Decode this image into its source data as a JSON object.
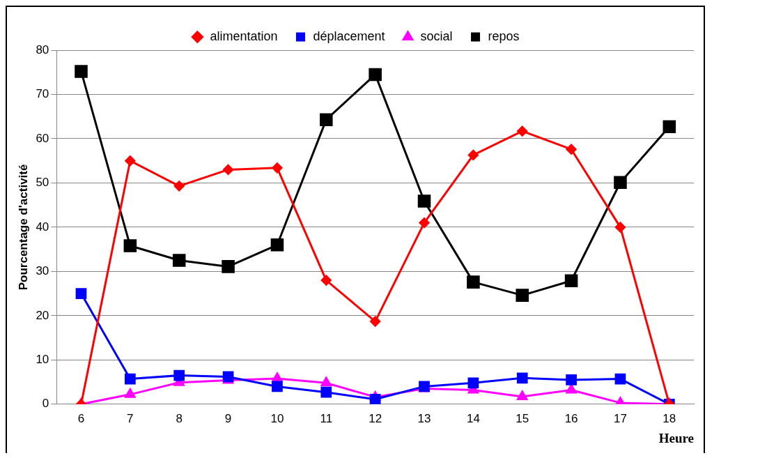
{
  "chart_data": {
    "type": "line",
    "xlabel": "Heure",
    "ylabel": "Pourcentage d'activité",
    "categories": [
      "6",
      "7",
      "8",
      "9",
      "10",
      "11",
      "12",
      "13",
      "14",
      "15",
      "16",
      "17",
      "18"
    ],
    "ylim": [
      0,
      80
    ],
    "yticks": [
      0,
      10,
      20,
      30,
      40,
      50,
      60,
      70,
      80
    ],
    "grid": "y",
    "legend": "top",
    "series": [
      {
        "name": "alimentation",
        "color": "#ff0000",
        "marker": "diamond",
        "values": [
          0,
          55,
          49.3,
          53,
          53.4,
          28,
          18.7,
          41,
          56.3,
          61.7,
          57.6,
          40,
          0
        ]
      },
      {
        "name": "déplacement",
        "color": "#0000ff",
        "marker": "square",
        "values": [
          25,
          5.7,
          6.5,
          6.2,
          4,
          2.7,
          1.1,
          4,
          4.8,
          5.9,
          5.5,
          5.7,
          0
        ]
      },
      {
        "name": "social",
        "color": "#ff00ff",
        "marker": "triangle",
        "values": [
          0,
          2.2,
          4.9,
          5.4,
          5.8,
          4.8,
          1.6,
          3.5,
          3.2,
          1.7,
          3.2,
          0.3,
          0
        ]
      },
      {
        "name": "repos",
        "color": "#000000",
        "marker": "square",
        "values": [
          75.2,
          35.8,
          32.5,
          31.1,
          36,
          64.3,
          74.5,
          45.9,
          27.6,
          24.6,
          27.9,
          50.1,
          62.7
        ]
      }
    ]
  }
}
